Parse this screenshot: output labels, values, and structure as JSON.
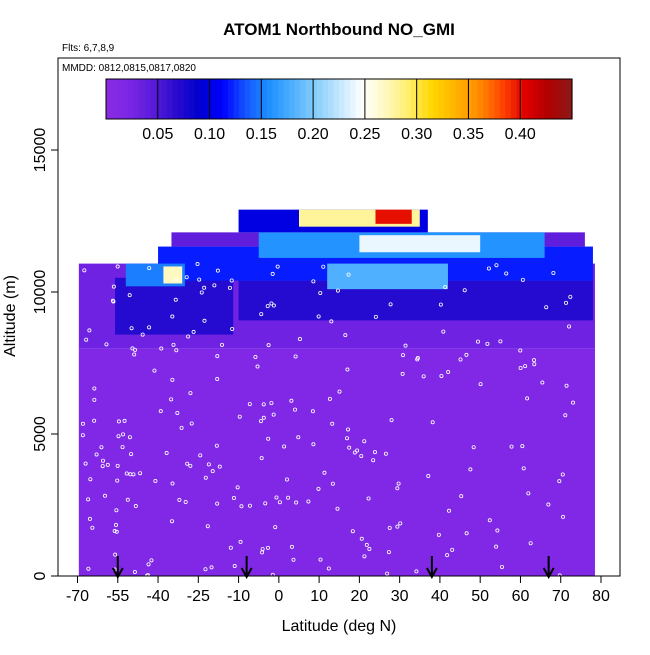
{
  "chart_data": {
    "type": "heatmap",
    "title": "ATOM1 Northbound NO_GMI",
    "subtitle_flights": "Flts: 6,7,8,9",
    "subtitle_dates": "MMDD: 0812,0815,0817,0820",
    "xlabel": "Latitude (deg N)",
    "ylabel": "Altitude (m)",
    "xlim": [
      -70,
      82
    ],
    "ylim": [
      0,
      17500
    ],
    "x_ticks": [
      -70,
      -55,
      -40,
      -25,
      -10,
      0,
      10,
      20,
      30,
      40,
      50,
      60,
      70,
      80
    ],
    "y_ticks": [
      0,
      5000,
      10000,
      15000
    ],
    "colorbar": {
      "min": 0.0,
      "max": 0.45,
      "tick_values": [
        0.05,
        0.1,
        0.15,
        0.2,
        0.25,
        0.3,
        0.35,
        0.4
      ],
      "tick_labels": [
        "0.05",
        "0.10",
        "0.15",
        "0.20",
        "0.25",
        "0.30",
        "0.35",
        "0.40"
      ],
      "colors": [
        "#8a2be2",
        "#7b26e6",
        "#5a1bd9",
        "#2a0ccf",
        "#0000cd",
        "#0000ff",
        "#1456ff",
        "#1e90ff",
        "#4fb0ff",
        "#87cefa",
        "#c2e6ff",
        "#ffffff",
        "#fff8c0",
        "#ffef6a",
        "#ffd700",
        "#ffb300",
        "#ff8c00",
        "#ff4500",
        "#e00000",
        "#b00000",
        "#8b1a1a"
      ]
    },
    "marker_color": "#ffffff",
    "flight_crossing_latitudes": [
      -55,
      -8,
      38,
      67
    ],
    "curtain": {
      "regions": [
        {
          "lat": [
            -69.5,
            78.5
          ],
          "alt": [
            0,
            8000
          ],
          "value": 0.015
        },
        {
          "lat": [
            -69.5,
            78.5
          ],
          "alt": [
            8000,
            11000
          ],
          "value": 0.03
        },
        {
          "lat": [
            -56,
            -12
          ],
          "alt": [
            8500,
            10500
          ],
          "value": 0.07
        },
        {
          "lat": [
            -10,
            78
          ],
          "alt": [
            9000,
            10400
          ],
          "value": 0.07
        },
        {
          "lat": [
            -40,
            78
          ],
          "alt": [
            10400,
            11600
          ],
          "value": 0.12
        },
        {
          "lat": [
            -52,
            -30
          ],
          "alt": [
            10200,
            11000
          ],
          "value": 0.15
        },
        {
          "lat": [
            -38,
            -31
          ],
          "alt": [
            10300,
            10900
          ],
          "value": 0.27
        },
        {
          "lat": [
            12,
            42
          ],
          "alt": [
            10100,
            11000
          ],
          "value": 0.18
        },
        {
          "lat": [
            -35,
            76
          ],
          "alt": [
            11600,
            12100
          ],
          "value": 0.04
        },
        {
          "lat": [
            -5,
            66
          ],
          "alt": [
            11200,
            12100
          ],
          "value": 0.16
        },
        {
          "lat": [
            20,
            50
          ],
          "alt": [
            11400,
            12000
          ],
          "value": 0.24
        },
        {
          "lat": [
            -10,
            37
          ],
          "alt": [
            12100,
            12900
          ],
          "value": 0.1
        },
        {
          "lat": [
            5,
            35
          ],
          "alt": [
            12300,
            12900
          ],
          "value": 0.28
        },
        {
          "lat": [
            24,
            33
          ],
          "alt": [
            12400,
            12900
          ],
          "value": 0.4
        }
      ]
    }
  }
}
